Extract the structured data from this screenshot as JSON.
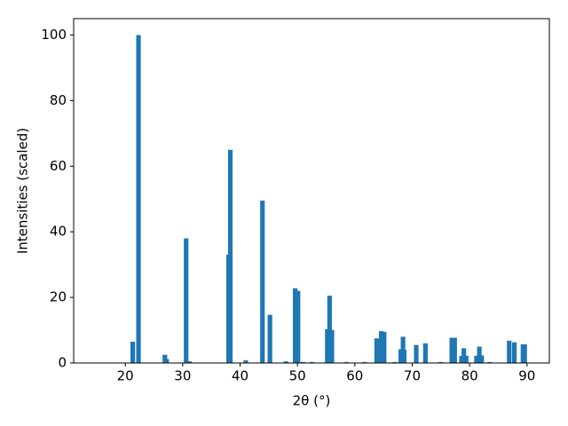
{
  "chart_data": {
    "type": "bar",
    "xlabel": "2θ (°)",
    "ylabel": "Intensities (scaled)",
    "color": "#1f77b4",
    "x": [
      21.3,
      22.3,
      26.9,
      27.2,
      30.6,
      31.2,
      38.0,
      38.3,
      41.0,
      43.9,
      45.2,
      48.0,
      49.6,
      50.1,
      51.0,
      52.5,
      55.2,
      55.6,
      56.0,
      58.5,
      61.7,
      63.8,
      64.6,
      65.1,
      67.0,
      68.0,
      68.4,
      68.6,
      70.7,
      72.3,
      75.0,
      76.9,
      77.4,
      78.6,
      79.0,
      79.4,
      81.2,
      81.7,
      82.1,
      83.5,
      86.9,
      87.8,
      89.3,
      89.6
    ],
    "values": [
      6.5,
      100,
      2.5,
      1.2,
      38,
      0.5,
      33,
      65,
      0.8,
      49.5,
      14.7,
      0.5,
      22.8,
      22,
      0.3,
      0.3,
      10.3,
      20.5,
      10,
      0.3,
      0.3,
      7.5,
      9.7,
      9.5,
      0.3,
      4.2,
      8,
      4,
      5.5,
      6,
      0.3,
      7.7,
      7.7,
      2.2,
      4.5,
      2.2,
      2.2,
      5,
      2.3,
      0.3,
      6.8,
      6.3,
      5.7,
      5.7
    ],
    "xlim": [
      11.0,
      93.9
    ],
    "ylim": [
      0,
      105
    ],
    "xticks": [
      20,
      30,
      40,
      50,
      60,
      70,
      80,
      90
    ],
    "yticks": [
      0,
      20,
      40,
      60,
      80,
      100
    ]
  }
}
